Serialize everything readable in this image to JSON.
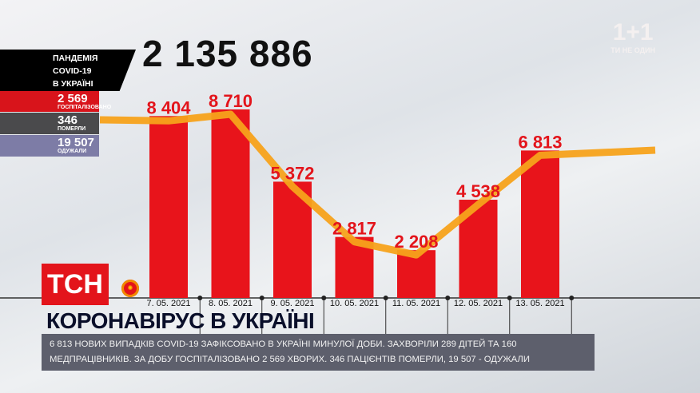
{
  "header": {
    "total": "2 135 886"
  },
  "side_panel": {
    "title_lines": [
      "ПАНДЕМІЯ",
      "COVID-19",
      "В УКРАЇНІ"
    ],
    "hospitalized": {
      "value": "2 569",
      "label": "ГОСПІТАЛІЗОВАНО",
      "color": "#d8141b"
    },
    "died": {
      "value": "346",
      "label": "ПОМЕРЛИ",
      "color": "#4a4a4c"
    },
    "recovered": {
      "value": "19 507",
      "label": "ОДУЖАЛИ",
      "color": "#7d7ca6"
    }
  },
  "watermark": {
    "logo": "1+1",
    "tagline": "ТИ НЕ ОДИН"
  },
  "branding": {
    "channel": "ТСН",
    "headline": "КОРОНАВІРУС В УКРАЇНІ"
  },
  "ticker": {
    "text": "6 813 НОВИХ ВИПАДКІВ COVID-19 ЗАФІКСОВАНО В УКРАЇНІ МИНУЛОЇ ДОБИ. ЗАХВОРІЛИ 289 ДІТЕЙ ТА 160 МЕДПРАЦІВНИКІВ. ЗА ДОБУ ГОСПІТАЛІЗОВАНО 2 569 ХВОРИХ. 346 ПАЦІЄНТІВ ПОМЕРЛИ, 19 507 - ОДУЖАЛИ"
  },
  "chart_data": {
    "type": "bar",
    "categories": [
      "7. 05. 2021",
      "8. 05. 2021",
      "9. 05. 2021",
      "10. 05. 2021",
      "11. 05. 2021",
      "12. 05. 2021",
      "13. 05. 2021"
    ],
    "values": [
      8404,
      8710,
      5372,
      2817,
      2208,
      4538,
      6813
    ],
    "labels": [
      "8 404",
      "8 710",
      "5 372",
      "2 817",
      "2 208",
      "4 538",
      "6 813"
    ],
    "bar_color": "#e8141b",
    "line_color": "#f7a21b",
    "label_color": "#e3141b",
    "ylim": [
      0,
      8710
    ],
    "grid": false,
    "trend_line": true
  }
}
